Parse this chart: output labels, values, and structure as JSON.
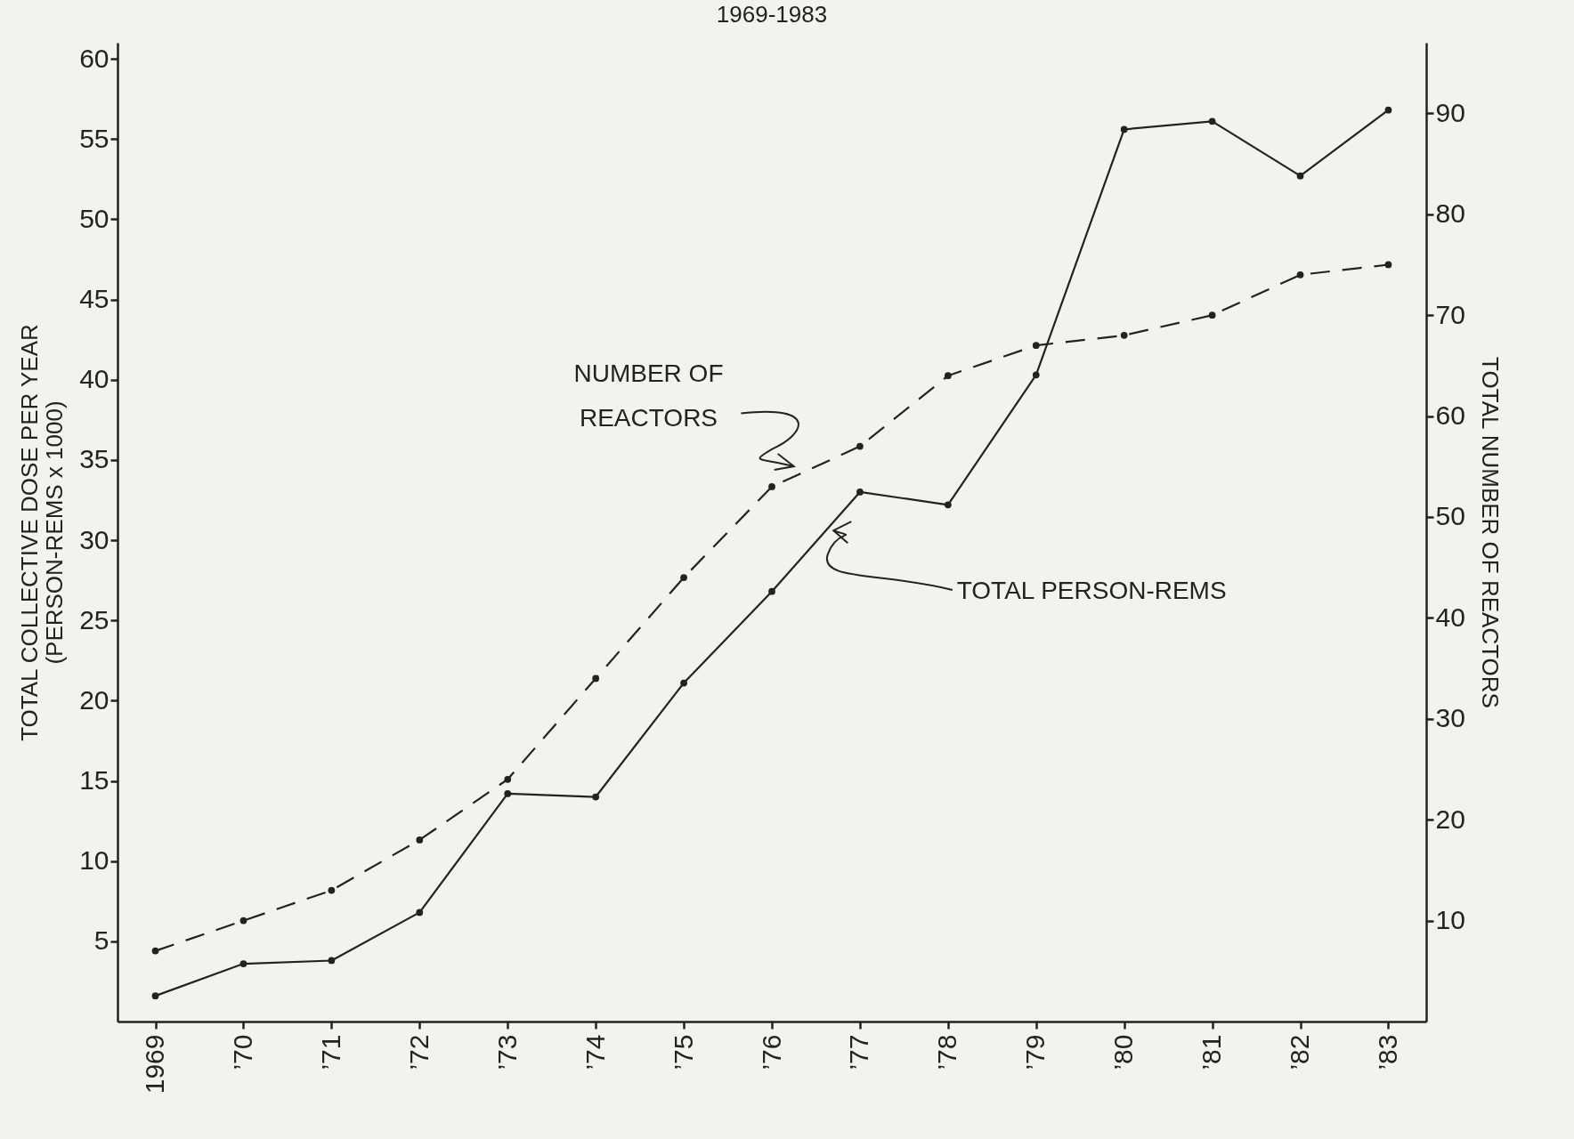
{
  "chart_data": {
    "type": "line",
    "title": "1969-1983",
    "ylabel": "TOTAL COLLECTIVE DOSE PER YEAR\n(PERSON-REMS x 1000)",
    "y2label": "TOTAL NUMBER OF REACTORS",
    "categories": [
      "1969",
      "’70",
      "’71",
      "’72",
      "’73",
      "’74",
      "’75",
      "’76",
      "’77",
      "’78",
      "’79",
      "’80",
      "’81",
      "’82",
      "’83"
    ],
    "series": [
      {
        "name": "TOTAL PERSON-REMS",
        "color": "#222222",
        "line_style": "solid",
        "values": [
          1.6,
          3.6,
          3.8,
          6.8,
          14.2,
          14.0,
          21.1,
          26.8,
          33.0,
          32.2,
          40.3,
          55.6,
          56.1,
          52.7,
          56.8
        ]
      },
      {
        "name": "NUMBER OF REACTORS",
        "color": "#222222",
        "line_style": "dashed",
        "axis": "y2",
        "values": [
          7,
          10,
          13,
          18,
          24,
          34,
          44,
          53,
          57,
          64,
          67,
          68,
          70,
          74,
          75
        ]
      }
    ],
    "ylim": [
      0,
      61
    ],
    "yticks": [
      5,
      10,
      15,
      20,
      25,
      30,
      35,
      40,
      45,
      50,
      55,
      60
    ],
    "y2lim": [
      0,
      97
    ],
    "y2ticks": [
      10,
      20,
      30,
      40,
      50,
      60,
      70,
      80,
      90
    ],
    "marker": "circle",
    "grid": false
  }
}
